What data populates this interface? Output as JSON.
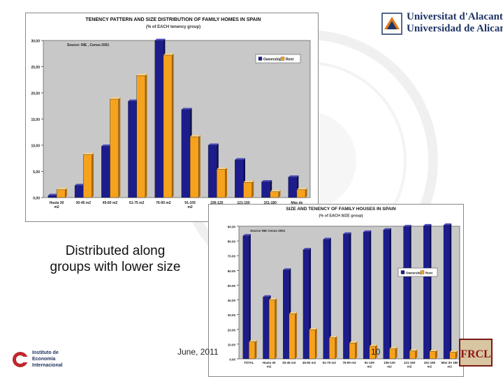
{
  "caption": "Distributed along groups with lower size",
  "footer": {
    "date": "June, 2011",
    "page": "10"
  },
  "logos": {
    "university_line1": "Universitat d'Alacant",
    "university_line2": "Universidad de Alicante",
    "institute_line1": "Instituto de",
    "institute_line2": "Economía",
    "institute_line3": "Internacional",
    "frcl": "FRCL"
  },
  "colors": {
    "ownership": "#1c1c8c",
    "rent": "#f7a21c",
    "plot_bg": "#c8c8c8"
  },
  "chart_data": [
    {
      "type": "bar",
      "title": "TENENCY PATTERN AND SIZE DISTRIBUTION OF FAMILY HOMES IN SPAIN",
      "subtitle": "(% of EACH tenency group)",
      "source": "Source: INE , Censo 2001",
      "categories": [
        "Hasta 30 m2",
        "30-45 m2",
        "45-60 m2",
        "61-75 m2",
        "76-90 m2",
        "91-105 m2",
        "106-120 m2",
        "121-150 m2",
        "151-180 m2",
        "Más de 180"
      ],
      "series": [
        {
          "name": "Ownership",
          "values": [
            0.4,
            2.3,
            9.8,
            18.4,
            30.0,
            16.8,
            10.0,
            7.2,
            3.0,
            3.9
          ]
        },
        {
          "name": "Rent",
          "values": [
            1.5,
            8.2,
            18.8,
            23.3,
            27.2,
            11.6,
            5.4,
            2.9,
            1.1,
            1.5
          ]
        }
      ],
      "ylim": [
        0,
        30
      ],
      "yticks": [
        "0,00",
        "5,00",
        "10,00",
        "15,00",
        "20,00",
        "25,00",
        "30,00"
      ],
      "legend": "top-right",
      "grid": false
    },
    {
      "type": "bar",
      "title": "SIZE AND TENENCY OF FAMILY HOUSES IN SPAIN",
      "subtitle": "(% of EACH SIZE group)",
      "source": "Source INE  Censo 2001",
      "categories": [
        "TOTAL",
        "Hasta 30 m2",
        "30-45 m2",
        "45-60 m2",
        "61-75 m2",
        "76-90 m2",
        "91-105 m2",
        "106-120 m2",
        "121-150 m2",
        "151-180 m2",
        "Más de 180 m2"
      ],
      "series": [
        {
          "name": "Ownership",
          "values": [
            83.5,
            42.0,
            60.3,
            74.1,
            81.0,
            84.7,
            86.0,
            87.5,
            89.7,
            90.3,
            90.7
          ]
        },
        {
          "name": "Rent",
          "values": [
            11.5,
            40.0,
            30.5,
            19.7,
            14.3,
            10.7,
            8.5,
            6.8,
            5.3,
            5.0,
            4.5
          ]
        }
      ],
      "ylim": [
        0,
        90
      ],
      "yticks": [
        "0.00",
        "10.00",
        "20.00",
        "30.00",
        "40.00",
        "50.00",
        "60.00",
        "70.00",
        "80.00",
        "90.00"
      ],
      "legend": "right",
      "grid": false
    }
  ]
}
